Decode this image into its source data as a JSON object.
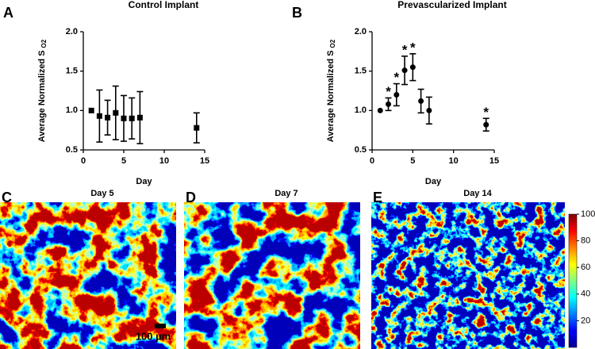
{
  "chart_data": [
    {
      "type": "errorbar",
      "panel": "A",
      "title": "Control Implant",
      "x_label": "Day",
      "y_label": "Average Normalized S",
      "y_label_subscript": "O2",
      "marker": "square",
      "color": "#000000",
      "x": [
        1,
        2,
        3,
        4,
        5,
        6,
        7,
        14
      ],
      "values": [
        1.0,
        0.93,
        0.91,
        0.97,
        0.9,
        0.9,
        0.91,
        0.78
      ],
      "errors": [
        0,
        0.33,
        0.22,
        0.34,
        0.29,
        0.26,
        0.33,
        0.19
      ],
      "xlim": [
        0,
        15
      ],
      "xticks": [
        0,
        5,
        10,
        15
      ],
      "ylim": [
        0.5,
        2.0
      ],
      "yticks": [
        0.5,
        {
          "value": 1,
          "label": "1.0"
        },
        1.5,
        {
          "value": 2,
          "label": "2.0"
        }
      ]
    },
    {
      "type": "errorbar",
      "panel": "B",
      "title": "Prevascularized Implant",
      "x_label": "Day",
      "y_label": "Average Normalized S",
      "y_label_subscript": "O2",
      "marker": "circle",
      "color": "#000000",
      "x": [
        1,
        2,
        3,
        4,
        5,
        6,
        7,
        14
      ],
      "values": [
        1.0,
        1.08,
        1.2,
        1.51,
        1.55,
        1.12,
        1.0,
        0.82
      ],
      "errors": [
        0,
        0.08,
        0.14,
        0.18,
        0.17,
        0.15,
        0.17,
        0.08
      ],
      "annotations": [
        {
          "x": 2,
          "text": "*"
        },
        {
          "x": 3,
          "text": "*"
        },
        {
          "x": 4,
          "text": "*"
        },
        {
          "x": 5,
          "text": "*"
        },
        {
          "x": 14,
          "text": "*"
        }
      ],
      "xlim": [
        0,
        15
      ],
      "xticks": [
        0,
        5,
        10,
        15
      ],
      "ylim": [
        0.5,
        2.0
      ],
      "yticks": [
        0.5,
        {
          "value": 1,
          "label": "1.0"
        },
        1.5,
        {
          "value": 2,
          "label": "2.0"
        }
      ]
    }
  ],
  "images": [
    {
      "panel": "C",
      "title": "Day 5"
    },
    {
      "panel": "D",
      "title": "Day 7"
    },
    {
      "panel": "E",
      "title": "Day 14"
    }
  ],
  "colorbar": {
    "ylim": [
      0,
      100
    ],
    "yticks": [
      20,
      40,
      60,
      80,
      100
    ]
  },
  "scale_bar": "100 µm"
}
